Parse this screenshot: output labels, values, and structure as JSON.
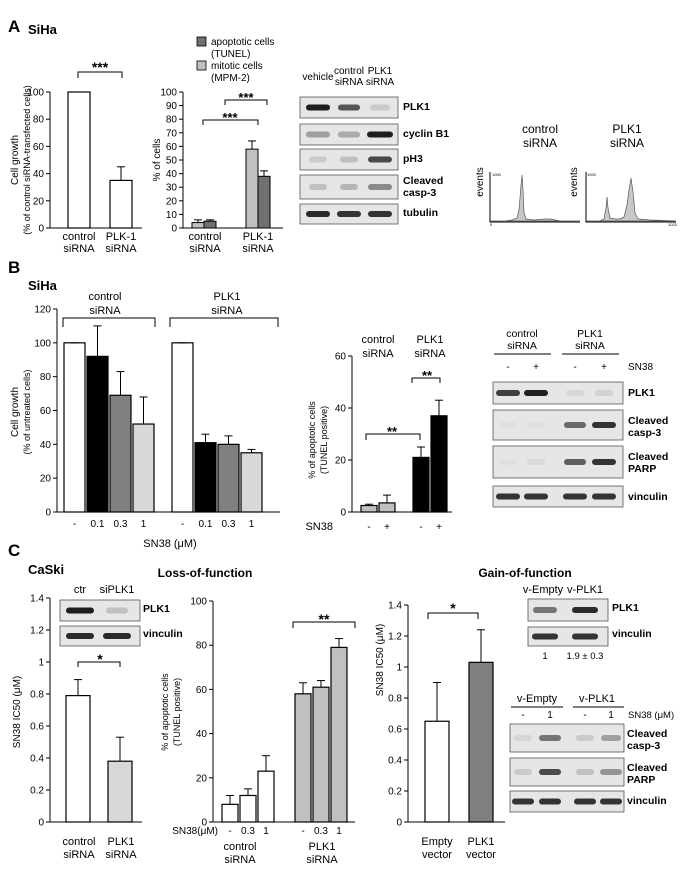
{
  "panel_A": {
    "letter": "A",
    "cell_line": "SiHa",
    "growth_chart": {
      "ylabel_line1": "Cell growth",
      "ylabel_line2": "(% of control siRNA-transfected cells)",
      "yticks": [
        "0",
        "20",
        "40",
        "60",
        "80",
        "100"
      ],
      "significance": "***",
      "xlabels": [
        [
          "control",
          "siRNA"
        ],
        [
          "PLK-1",
          "siRNA"
        ]
      ]
    },
    "legend": {
      "apoptotic_line1": "apoptotic cells",
      "apoptotic_line2": "(TUNEL)",
      "mitotic_line1": "mitotic cells",
      "mitotic_line2": "(MPM-2)"
    },
    "cells_chart": {
      "ylabel": "% of cells",
      "yticks": [
        "0",
        "10",
        "20",
        "30",
        "40",
        "50",
        "60",
        "70",
        "80",
        "90",
        "100"
      ],
      "sig_top": "***",
      "sig_bottom": "***",
      "xlabels": [
        [
          "control",
          "siRNA"
        ],
        [
          "PLK-1",
          "siRNA"
        ]
      ]
    },
    "blot": {
      "columns": [
        [
          "vehicle"
        ],
        [
          "control",
          "siRNA"
        ],
        [
          "PLK1",
          "siRNA"
        ]
      ],
      "rows": [
        "PLK1",
        "cyclin B1",
        "pH3",
        "Cleaved casp-3",
        "tubulin"
      ]
    },
    "facs": [
      {
        "title1": "control",
        "title2": "siRNA",
        "ylabel": "events",
        "ymax": "1000",
        "xmax": "1023",
        "xmin": "0"
      },
      {
        "title1": "PLK1",
        "title2": "siRNA",
        "ylabel": "events",
        "ymax": "1000",
        "xmax": "1023",
        "xmin": "0"
      }
    ]
  },
  "panel_B": {
    "letter": "B",
    "cell_line": "SiHa",
    "growth_chart": {
      "group1": [
        "control",
        "siRNA"
      ],
      "group2": [
        "PLK1",
        "siRNA"
      ],
      "ylabel_line1": "Cell growth",
      "ylabel_line2": "(% of untreated cells)",
      "yticks": [
        "0",
        "20",
        "40",
        "60",
        "80",
        "100",
        "120"
      ],
      "xticks": [
        "-",
        "0.1",
        "0.3",
        "1",
        "-",
        "0.1",
        "0.3",
        "1"
      ],
      "xlabel": "SN38 (μM)"
    },
    "apoptosis_chart": {
      "group1": [
        "control",
        "siRNA"
      ],
      "group2": [
        "PLK1",
        "siRNA"
      ],
      "ylabel_line1": "% of apoptotic cells",
      "ylabel_line2": "(TUNEL positive)",
      "yticks": [
        "0",
        "20",
        "40",
        "60"
      ],
      "sig1": "**",
      "sig2": "**",
      "xprefix": "SN38",
      "xticks": [
        "-",
        "+",
        "-",
        "+"
      ]
    },
    "blot": {
      "groups": [
        [
          "control",
          "siRNA"
        ],
        [
          "PLK1",
          "siRNA"
        ]
      ],
      "lanes": [
        "-",
        "+",
        "-",
        "+"
      ],
      "treatment": "SN38",
      "rows": [
        "PLK1",
        "Cleaved casp-3",
        "Cleaved PARP",
        "vinculin"
      ]
    }
  },
  "panel_C": {
    "letter": "C",
    "cell_line": "CaSki",
    "loss_title": "Loss-of-function",
    "gain_title": "Gain-of-function",
    "ic50_chart": {
      "blot_cols": [
        "ctr",
        "siPLK1"
      ],
      "blot_rows": [
        "PLK1",
        "vinculin"
      ],
      "ylabel": "SN38 IC50 (μM)",
      "yticks": [
        "0",
        "0.2",
        "0.4",
        "0.6",
        "0.8",
        "1",
        "1.2",
        "1.4"
      ],
      "significance": "*",
      "xlabels": [
        [
          "control",
          "siRNA"
        ],
        [
          "PLK1",
          "siRNA"
        ]
      ]
    },
    "apoptosis_chart": {
      "ylabel_line1": "% of apoptotic cells",
      "ylabel_line2": "(TUNEL positive)",
      "yticks": [
        "0",
        "20",
        "40",
        "60",
        "80",
        "100"
      ],
      "significance": "**",
      "xprefix": "SN38(μM)",
      "xticks": [
        "-",
        "0.3",
        "1",
        "-",
        "0.3",
        "1"
      ],
      "xlabels": [
        [
          "control",
          "siRNA"
        ],
        [
          "PLK1",
          "siRNA"
        ]
      ]
    },
    "gain_chart": {
      "ylabel": "SN38 IC50 (μM)",
      "yticks": [
        "0",
        "0.2",
        "0.4",
        "0.6",
        "0.8",
        "1",
        "1.2",
        "1.4"
      ],
      "significance": "*",
      "xlabels": [
        [
          "Empty",
          "vector"
        ],
        [
          "PLK1",
          "vector"
        ]
      ]
    },
    "gain_blot1": {
      "cols": [
        "v-Empty",
        "v-PLK1"
      ],
      "rows": [
        "PLK1",
        "vinculin"
      ],
      "quant": [
        "1",
        "1.9 ± 0.3"
      ]
    },
    "gain_blot2": {
      "groups": [
        "v-Empty",
        "v-PLK1"
      ],
      "lanes": [
        "-",
        "1",
        "-",
        "1"
      ],
      "treatment": "SN38 (μM)",
      "rows": [
        "Cleaved casp-3",
        "Cleaved PARP",
        "vinculin"
      ]
    }
  },
  "chart_data": [
    {
      "id": "A-growth",
      "type": "bar",
      "categories": [
        "control siRNA",
        "PLK-1 siRNA"
      ],
      "values": [
        100,
        35
      ],
      "errors": [
        0,
        10
      ],
      "colors": [
        "#ffffff",
        "#ffffff"
      ],
      "ylim": [
        0,
        100
      ]
    },
    {
      "id": "A-cells",
      "type": "bar",
      "categories": [
        "control siRNA",
        "PLK-1 siRNA"
      ],
      "series": [
        {
          "name": "mitotic cells (MPM-2)",
          "values": [
            4,
            58
          ],
          "errors": [
            2,
            6
          ],
          "color": "#c0c0c0"
        },
        {
          "name": "apoptotic cells (TUNEL)",
          "values": [
            5,
            38
          ],
          "errors": [
            1,
            4
          ],
          "color": "#707070"
        }
      ],
      "ylim": [
        0,
        100
      ]
    },
    {
      "id": "B-growth",
      "type": "bar",
      "categories": [
        "-",
        "0.1",
        "0.3",
        "1",
        "-",
        "0.1",
        "0.3",
        "1"
      ],
      "values": [
        100,
        92,
        69,
        52,
        100,
        41,
        40,
        35
      ],
      "errors": [
        0,
        18,
        14,
        16,
        0,
        5,
        5,
        2
      ],
      "colors": [
        "#ffffff",
        "#000000",
        "#808080",
        "#d8d8d8",
        "#ffffff",
        "#000000",
        "#808080",
        "#d8d8d8"
      ],
      "ylim": [
        0,
        120
      ]
    },
    {
      "id": "B-apoptosis",
      "type": "bar",
      "categories": [
        "-",
        "+",
        "-",
        "+"
      ],
      "values": [
        2.5,
        3.5,
        21,
        37
      ],
      "errors": [
        0.5,
        3,
        4,
        6
      ],
      "colors": [
        "#c0c0c0",
        "#c0c0c0",
        "#000000",
        "#000000"
      ],
      "ylim": [
        0,
        60
      ]
    },
    {
      "id": "C-ic50",
      "type": "bar",
      "categories": [
        "control siRNA",
        "PLK1 siRNA"
      ],
      "values": [
        0.79,
        0.38
      ],
      "errors": [
        0.1,
        0.15
      ],
      "colors": [
        "#ffffff",
        "#d8d8d8"
      ],
      "ylim": [
        0,
        1.4
      ]
    },
    {
      "id": "C-apoptosis",
      "type": "bar",
      "categories": [
        "-",
        "0.3",
        "1",
        "-",
        "0.3",
        "1"
      ],
      "values": [
        8,
        12,
        23,
        58,
        61,
        79
      ],
      "errors": [
        4,
        3,
        7,
        5,
        3,
        4
      ],
      "colors": [
        "#ffffff",
        "#ffffff",
        "#ffffff",
        "#c0c0c0",
        "#c0c0c0",
        "#c0c0c0"
      ],
      "ylim": [
        0,
        100
      ]
    },
    {
      "id": "C-gain",
      "type": "bar",
      "categories": [
        "Empty vector",
        "PLK1 vector"
      ],
      "values": [
        0.65,
        1.03
      ],
      "errors": [
        0.25,
        0.21
      ],
      "colors": [
        "#ffffff",
        "#808080"
      ],
      "ylim": [
        0,
        1.4
      ]
    }
  ]
}
